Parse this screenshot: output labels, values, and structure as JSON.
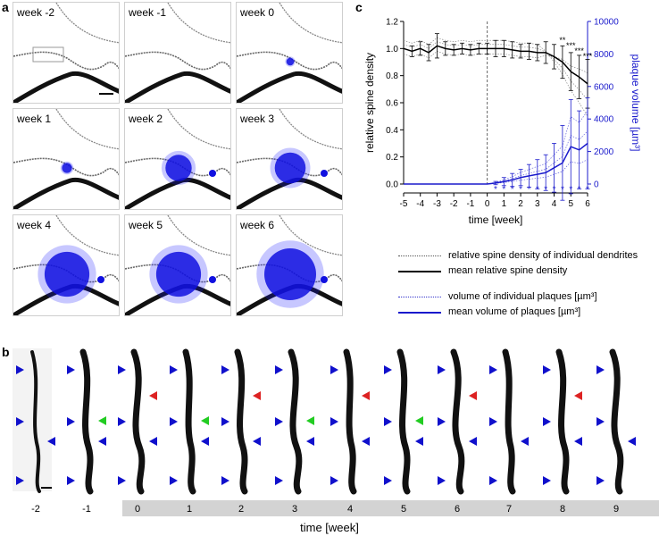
{
  "panels": {
    "a": "a",
    "b": "b",
    "c": "c"
  },
  "panel_a": {
    "tiles": [
      {
        "label": "week -2",
        "plaque": 0
      },
      {
        "label": "week -1",
        "plaque": 0
      },
      {
        "label": "week 0",
        "plaque": 0.05
      },
      {
        "label": "week 1",
        "plaque": 0.1
      },
      {
        "label": "week 2",
        "plaque": 0.45
      },
      {
        "label": "week 3",
        "plaque": 0.55
      },
      {
        "label": "week 4",
        "plaque": 0.85
      },
      {
        "label": "week 5",
        "plaque": 0.85
      },
      {
        "label": "week 6",
        "plaque": 1.0
      }
    ]
  },
  "chart_data": {
    "type": "line",
    "xlabel": "time [week]",
    "ylabel_left": "relative spine density",
    "ylabel_right": "plaque volume [µm³]",
    "x": [
      -5,
      -4.5,
      -4,
      -3.5,
      -3,
      -2.5,
      -2,
      -1.5,
      -1,
      -0.5,
      0,
      0.5,
      1,
      1.5,
      2,
      2.5,
      3,
      3.5,
      4,
      4.5,
      5,
      5.5,
      6
    ],
    "xticks": [
      -5,
      -4,
      -3,
      -2,
      -1,
      0,
      1,
      2,
      3,
      4,
      5,
      6
    ],
    "ylim_left": [
      0,
      1.2
    ],
    "yticks_left": [
      "0.0",
      "0.2",
      "0.4",
      "0.6",
      "0.8",
      "1.0",
      "1.2"
    ],
    "ylim_right": [
      0,
      10000
    ],
    "yticks_right": [
      "0",
      "2000",
      "4000",
      "6000",
      "8000",
      "10000"
    ],
    "vline_x": 0,
    "series": [
      {
        "axis": "left",
        "color": "#000000",
        "values": [
          1.0,
          0.98,
          1.0,
          0.97,
          1.02,
          1.0,
          0.99,
          1.0,
          0.99,
          1.0,
          1.0,
          1.0,
          1.0,
          0.99,
          0.98,
          0.98,
          0.97,
          0.97,
          0.94,
          0.9,
          0.83,
          0.79,
          0.74
        ],
        "err": [
          0,
          0.04,
          0.05,
          0.06,
          0.09,
          0.05,
          0.04,
          0.04,
          0.04,
          0.04,
          0.04,
          0.06,
          0.06,
          0.06,
          0.05,
          0.06,
          0.06,
          0.08,
          0.09,
          0.12,
          0.14,
          0.16,
          0.18
        ]
      },
      {
        "axis": "right",
        "color": "#1a1acc",
        "values": [
          0,
          0,
          0,
          0,
          0,
          0,
          0,
          0,
          0,
          0,
          0,
          60,
          150,
          250,
          400,
          500,
          600,
          700,
          1000,
          1300,
          2300,
          2100,
          2500
        ],
        "err": [
          0,
          0,
          0,
          0,
          0,
          0,
          0,
          0,
          0,
          0,
          0,
          100,
          250,
          400,
          500,
          700,
          900,
          1100,
          1500,
          2300,
          2900,
          2400,
          2800
        ]
      }
    ],
    "stars_spine": [
      {
        "x": 4.5,
        "text": "**"
      },
      {
        "x": 5,
        "text": "***"
      },
      {
        "x": 5.5,
        "text": "***"
      },
      {
        "x": 6,
        "text": "***"
      }
    ],
    "stars_plaque": {
      "text": "*",
      "xs": [
        0.5,
        1,
        1.5,
        2,
        2.5,
        3,
        3.5,
        4,
        4.5,
        5,
        5.5,
        6
      ]
    }
  },
  "legend": [
    {
      "text": "relative spine density of individual dendrites",
      "color": "#555555",
      "style": "dotted"
    },
    {
      "text": "mean relative spine density",
      "color": "#000000",
      "style": "solid"
    },
    {
      "text": "volume of individual plaques [µm³]",
      "color": "#3333cc",
      "style": "dotted"
    },
    {
      "text": "mean volume of plaques [µm³]",
      "color": "#1a1acc",
      "style": "solid"
    }
  ],
  "panel_b": {
    "xlabel": "time [week]",
    "times": [
      "-2",
      "-1",
      "0",
      "1",
      "2",
      "3",
      "4",
      "5",
      "6",
      "7",
      "8",
      "9"
    ]
  }
}
